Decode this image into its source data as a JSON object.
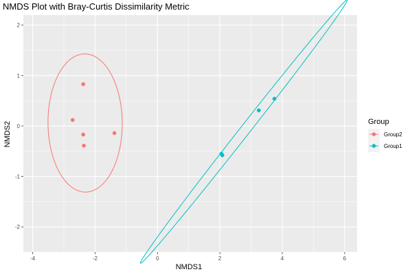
{
  "chart_data": {
    "type": "scatter",
    "title": "NMDS Plot with Bray-Curtis Dissimilarity Metric",
    "xlabel": "NMDS1",
    "ylabel": "NMDS2",
    "xlim": [
      -4.3,
      6.4
    ],
    "ylim": [
      -2.5,
      2.2
    ],
    "x_ticks": [
      -4,
      -2,
      0,
      2,
      4,
      6
    ],
    "y_ticks": [
      -2,
      -1,
      0,
      1,
      2
    ],
    "grid": true,
    "legend": {
      "title": "Group",
      "position": "right",
      "entries": [
        "Group2",
        "Group1"
      ]
    },
    "series": [
      {
        "name": "Group2",
        "color": "#F8766D",
        "points": [
          {
            "x": -2.38,
            "y": 0.83
          },
          {
            "x": -2.72,
            "y": 0.12
          },
          {
            "x": -2.38,
            "y": -0.17
          },
          {
            "x": -1.38,
            "y": -0.14
          },
          {
            "x": -2.36,
            "y": -0.39
          }
        ],
        "ellipse": {
          "center": [
            -2.32,
            0.06
          ],
          "rx": 1.19,
          "ry": 1.37,
          "angle_deg": 2
        }
      },
      {
        "name": "Group1",
        "color": "#00BFC4",
        "points": [
          {
            "x": 2.05,
            "y": -0.55
          },
          {
            "x": 2.08,
            "y": -0.58
          },
          {
            "x": 3.25,
            "y": 0.31
          },
          {
            "x": 3.75,
            "y": 0.54
          }
        ],
        "ellipse": {
          "center": [
            2.77,
            -0.11
          ],
          "rx": 4.22,
          "ry": 0.125,
          "angle_deg": 38.2
        }
      }
    ]
  }
}
